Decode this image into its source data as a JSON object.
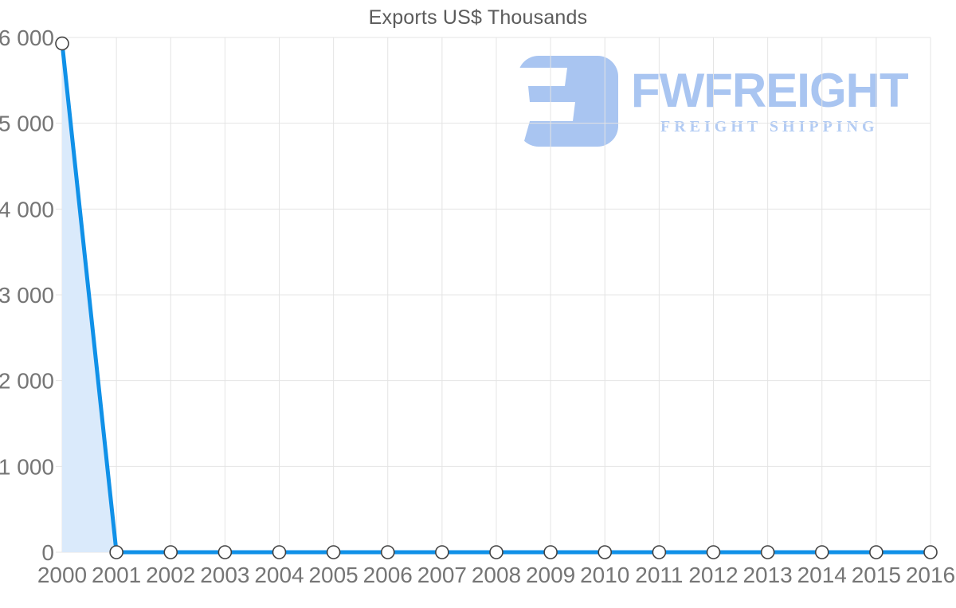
{
  "chart_data": {
    "type": "area",
    "title": "Exports US$ Thousands",
    "x": [
      "2000",
      "2001",
      "2002",
      "2003",
      "2004",
      "2005",
      "2006",
      "2007",
      "2008",
      "2009",
      "2010",
      "2011",
      "2012",
      "2013",
      "2014",
      "2015",
      "2016"
    ],
    "series": [
      {
        "name": "Exports US$ Thousands",
        "values": [
          5930,
          0,
          0,
          0,
          0,
          0,
          0,
          0,
          0,
          0,
          0,
          0,
          0,
          0,
          0,
          0,
          0
        ]
      }
    ],
    "xlabel": "",
    "ylabel": "",
    "ylim": [
      0,
      6000
    ],
    "yticks": [
      0,
      1000,
      2000,
      3000,
      4000,
      5000,
      6000
    ],
    "ytick_labels": [
      "0",
      "1 000",
      "2 000",
      "3 000",
      "4 000",
      "5 000",
      "6 000"
    ],
    "grid": "both",
    "legend": "none",
    "marker": "circle",
    "colors": {
      "line": "#1091e8",
      "area": "#daeafb",
      "grid": "#e4e4e4",
      "axis_label": "#757575",
      "title": "#5b5b5b",
      "marker_fill": "#ffffff",
      "marker_stroke": "#424242"
    }
  },
  "logo": {
    "brand": "FWFREIGHT",
    "tagline": "FREIGHT SHIPPING",
    "icon": "fwfreight-mark",
    "color_primary": "#a9c5f1",
    "color_tagline": "#b2cbf3"
  }
}
